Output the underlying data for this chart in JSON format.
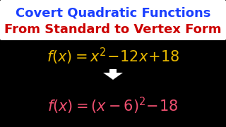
{
  "bg_color": "#000000",
  "title_line1": "Covert Quadratic Functions",
  "title_line2": "From Standard to Vertex Form",
  "title_color1": "#1a3fff",
  "title_color2": "#cc0000",
  "title_bg": "#ffffff",
  "eq1_color": "#e8b800",
  "eq2_color": "#f05070",
  "arrow_color": "#ffffff",
  "figsize": [
    3.2,
    1.8
  ],
  "dpi": 100
}
